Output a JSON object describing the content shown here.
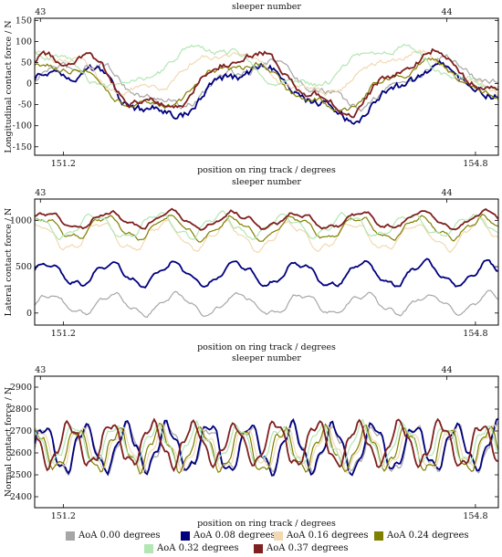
{
  "chart_data": [
    {
      "type": "line",
      "ylabel": "Longitudinal contact force / N",
      "xlabel": "position on ring track / degrees",
      "top_xlabel": "sleeper number",
      "top_ticks": [
        {
          "x": 151.0,
          "label": "43"
        },
        {
          "x": 154.55,
          "label": "44"
        }
      ],
      "bottom_ticks": [
        {
          "x": 151.2,
          "label": "151.2"
        },
        {
          "x": 154.8,
          "label": "154.8"
        }
      ],
      "xlim": [
        150.95,
        155.0
      ],
      "ylim": [
        -170,
        155
      ],
      "yticks": [
        -150,
        -100,
        -50,
        0,
        50,
        100,
        150
      ],
      "series": [
        {
          "name": "AoA 0.00 degrees",
          "color": "#a6a6a6",
          "base": 0,
          "amp": 48,
          "jitter": 12,
          "phase": 0.0
        },
        {
          "name": "AoA 0.08 degrees",
          "color": "#00007f",
          "base": -20,
          "amp": 55,
          "jitter": 14,
          "phase": 0.05
        },
        {
          "name": "AoA 0.16 degrees",
          "color": "#f2d9b3",
          "base": 25,
          "amp": 45,
          "jitter": 10,
          "phase": 0.2
        },
        {
          "name": "AoA 0.24 degrees",
          "color": "#7f7f00",
          "base": -5,
          "amp": 50,
          "jitter": 10,
          "phase": 0.12
        },
        {
          "name": "AoA 0.32 degrees",
          "color": "#b3e6b3",
          "base": 40,
          "amp": 45,
          "jitter": 10,
          "phase": 0.3
        },
        {
          "name": "AoA 0.37 degrees",
          "color": "#7f1f1f",
          "base": 5,
          "amp": 62,
          "jitter": 12,
          "phase": 0.08
        }
      ],
      "period": 1.6
    },
    {
      "type": "line",
      "ylabel": "Lateral contact force / N",
      "xlabel": "position on ring track / degrees",
      "top_xlabel": "sleeper number",
      "top_ticks": [
        {
          "x": 151.0,
          "label": "43"
        },
        {
          "x": 154.55,
          "label": "44"
        }
      ],
      "bottom_ticks": [
        {
          "x": 151.2,
          "label": "151.2"
        },
        {
          "x": 154.8,
          "label": "154.8"
        }
      ],
      "xlim": [
        150.95,
        155.0
      ],
      "ylim": [
        -130,
        1230
      ],
      "yticks": [
        0,
        500,
        1000
      ],
      "series": [
        {
          "name": "AoA 0.00 degrees",
          "color": "#a6a6a6",
          "base": 95,
          "amp": 100,
          "jitter": 25,
          "phase": 0.0
        },
        {
          "name": "AoA 0.08 degrees",
          "color": "#00007f",
          "base": 420,
          "amp": 120,
          "jitter": 25,
          "phase": 0.05
        },
        {
          "name": "AoA 0.16 degrees",
          "color": "#f2d9b3",
          "base": 830,
          "amp": 140,
          "jitter": 30,
          "phase": 0.2
        },
        {
          "name": "AoA 0.24 degrees",
          "color": "#7f7f00",
          "base": 920,
          "amp": 110,
          "jitter": 25,
          "phase": 0.12
        },
        {
          "name": "AoA 0.32 degrees",
          "color": "#b3e6b3",
          "base": 940,
          "amp": 120,
          "jitter": 25,
          "phase": 0.3
        },
        {
          "name": "AoA 0.37 degrees",
          "color": "#7f1f1f",
          "base": 1000,
          "amp": 80,
          "jitter": 25,
          "phase": 0.08
        }
      ],
      "period": 0.55
    },
    {
      "type": "line",
      "ylabel": "Normal contact force / N",
      "xlabel": "position on ring track / degrees",
      "top_xlabel": "sleeper number",
      "top_ticks": [
        {
          "x": 151.0,
          "label": "43"
        },
        {
          "x": 154.55,
          "label": "44"
        }
      ],
      "bottom_ticks": [
        {
          "x": 151.2,
          "label": "151.2"
        },
        {
          "x": 154.8,
          "label": "154.8"
        }
      ],
      "xlim": [
        150.95,
        155.0
      ],
      "ylim": [
        2350,
        2950
      ],
      "yticks": [
        2400,
        2500,
        2600,
        2700,
        2800,
        2900
      ],
      "series": [
        {
          "name": "AoA 0.00 degrees",
          "color": "#a6a6a6",
          "base": 2620,
          "amp": 95,
          "jitter": 15,
          "phase": 0.0
        },
        {
          "name": "AoA 0.08 degrees",
          "color": "#00007f",
          "base": 2625,
          "amp": 100,
          "jitter": 15,
          "phase": 0.02
        },
        {
          "name": "AoA 0.16 degrees",
          "color": "#f2d9b3",
          "base": 2620,
          "amp": 85,
          "jitter": 15,
          "phase": 0.15
        },
        {
          "name": "AoA 0.24 degrees",
          "color": "#7f7f00",
          "base": 2615,
          "amp": 90,
          "jitter": 15,
          "phase": 0.22
        },
        {
          "name": "AoA 0.32 degrees",
          "color": "#b3e6b3",
          "base": 2640,
          "amp": 80,
          "jitter": 15,
          "phase": 0.3
        },
        {
          "name": "AoA 0.37 degrees",
          "color": "#7f1f1f",
          "base": 2640,
          "amp": 90,
          "jitter": 15,
          "phase": 0.4
        }
      ],
      "period": 0.36
    }
  ],
  "legend": [
    {
      "label": "AoA 0.00 degrees",
      "color": "#a6a6a6"
    },
    {
      "label": "AoA 0.08 degrees",
      "color": "#00007f"
    },
    {
      "label": "AoA 0.16 degrees",
      "color": "#f2d9b3"
    },
    {
      "label": "AoA 0.24 degrees",
      "color": "#7f7f00"
    },
    {
      "label": "AoA 0.32 degrees",
      "color": "#b3e6b3"
    },
    {
      "label": "AoA 0.37 degrees",
      "color": "#7f1f1f"
    }
  ]
}
